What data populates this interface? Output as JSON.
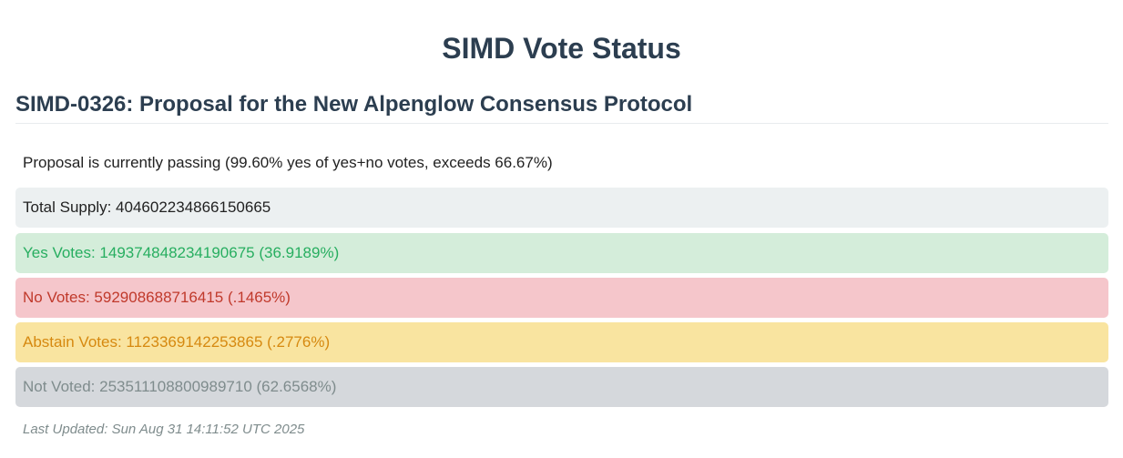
{
  "header": {
    "title": "SIMD Vote Status"
  },
  "proposal": {
    "heading": "SIMD-0326: Proposal for the New Alpenglow Consensus Protocol",
    "status": "Proposal is currently passing (99.60% yes of yes+no votes, exceeds 66.67%)"
  },
  "votes": {
    "total_supply": "Total Supply: 404602234866150665",
    "yes": "Yes Votes: 149374848234190675 (36.9189%)",
    "no": "No Votes: 592908688716415 (.1465%)",
    "abstain": "Abstain Votes: 1123369142253865 (.2776%)",
    "not_voted": "Not Voted: 253511108800989710 (62.6568%)"
  },
  "footer": {
    "last_updated": "Last Updated: Sun Aug 31 14:11:52 UTC 2025"
  },
  "colors": {
    "heading": "#2c3e50",
    "yes": "#27ae60",
    "no": "#c0392b",
    "abstain": "#d68910",
    "not_voted": "#7f8c8d"
  }
}
